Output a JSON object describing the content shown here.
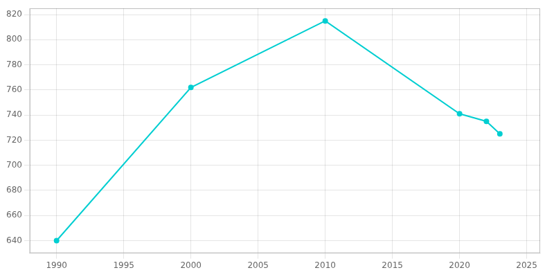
{
  "chart_data": {
    "type": "line",
    "x": [
      1990,
      2000,
      2010,
      2020,
      2022,
      2023
    ],
    "values": [
      640,
      762,
      815,
      741,
      735,
      725
    ],
    "color": "#00CED1",
    "marker": "circle",
    "xlim": [
      1988,
      2026
    ],
    "ylim": [
      630,
      825
    ],
    "xticks": [
      1990,
      1995,
      2000,
      2005,
      2010,
      2015,
      2020,
      2025
    ],
    "yticks": [
      640,
      660,
      680,
      700,
      720,
      740,
      760,
      780,
      800,
      820
    ],
    "grid": true
  }
}
